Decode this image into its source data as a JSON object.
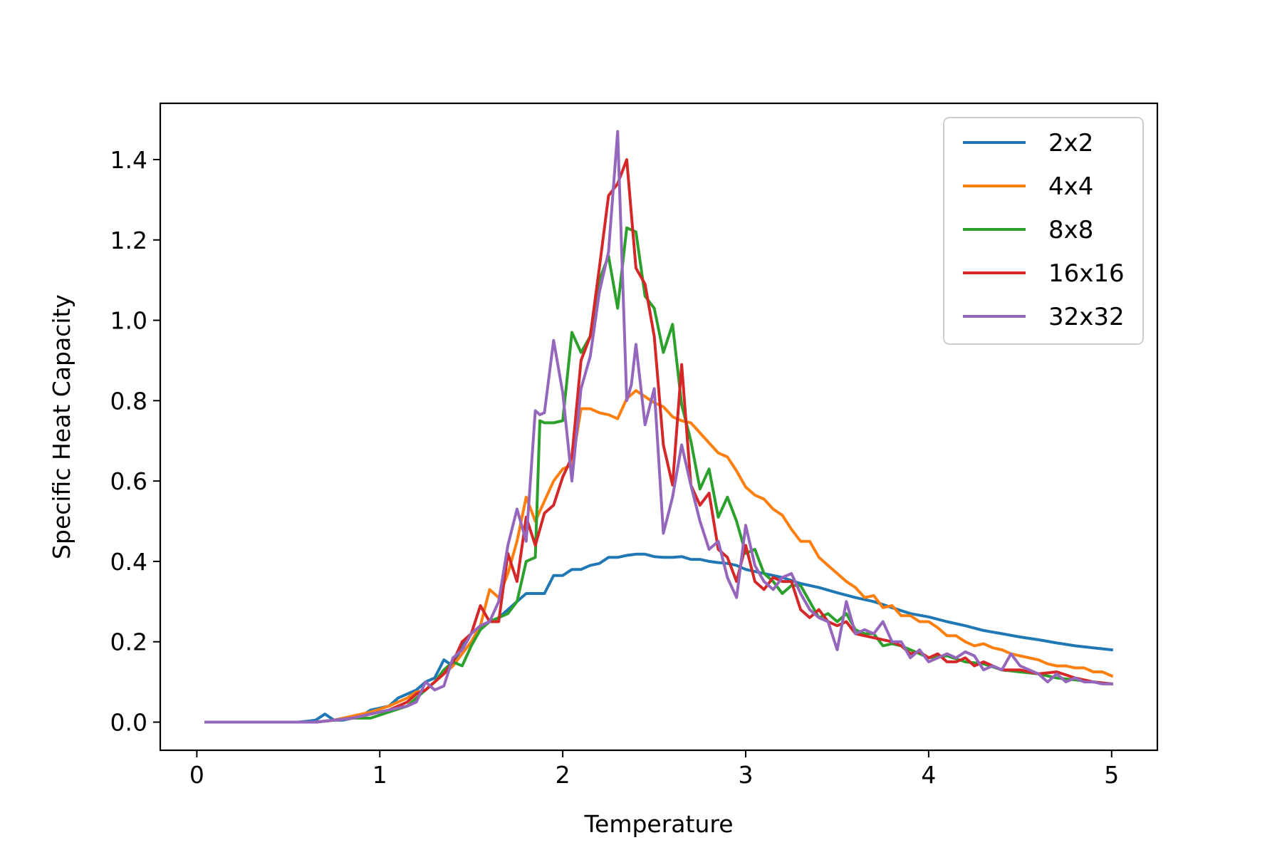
{
  "chart_data": {
    "type": "line",
    "title": "",
    "xlabel": "Temperature",
    "ylabel": "Specific Heat Capacity",
    "xlim": [
      -0.2,
      5.25
    ],
    "ylim": [
      -0.07,
      1.54
    ],
    "xticks": [
      0,
      1,
      2,
      3,
      4,
      5
    ],
    "yticks": [
      0.0,
      0.2,
      0.4,
      0.6,
      0.8,
      1.0,
      1.2,
      1.4
    ],
    "grid": false,
    "legend_position": "top-right",
    "series": [
      {
        "name": "2x2",
        "color": "#1f77b4",
        "x": [
          0.05,
          0.3,
          0.55,
          0.6,
          0.65,
          0.7,
          0.75,
          0.8,
          0.85,
          0.9,
          0.95,
          1.0,
          1.05,
          1.1,
          1.15,
          1.2,
          1.25,
          1.3,
          1.35,
          1.4,
          1.45,
          1.5,
          1.55,
          1.6,
          1.65,
          1.7,
          1.75,
          1.8,
          1.85,
          1.9,
          1.95,
          2.0,
          2.05,
          2.1,
          2.15,
          2.2,
          2.25,
          2.3,
          2.35,
          2.4,
          2.45,
          2.5,
          2.55,
          2.6,
          2.65,
          2.7,
          2.75,
          2.8,
          2.85,
          2.9,
          2.95,
          3.0,
          3.1,
          3.2,
          3.3,
          3.4,
          3.5,
          3.6,
          3.7,
          3.8,
          3.9,
          4.0,
          4.1,
          4.2,
          4.3,
          4.4,
          4.5,
          4.6,
          4.7,
          4.8,
          4.9,
          5.0
        ],
        "y": [
          0.0,
          0.0,
          0.0,
          0.002,
          0.005,
          0.02,
          0.005,
          0.005,
          0.01,
          0.015,
          0.03,
          0.035,
          0.04,
          0.06,
          0.07,
          0.08,
          0.1,
          0.11,
          0.155,
          0.14,
          0.19,
          0.22,
          0.24,
          0.25,
          0.26,
          0.28,
          0.3,
          0.32,
          0.32,
          0.32,
          0.365,
          0.365,
          0.38,
          0.38,
          0.39,
          0.395,
          0.41,
          0.41,
          0.415,
          0.418,
          0.418,
          0.412,
          0.41,
          0.41,
          0.412,
          0.405,
          0.405,
          0.4,
          0.397,
          0.395,
          0.39,
          0.38,
          0.37,
          0.36,
          0.345,
          0.335,
          0.322,
          0.31,
          0.3,
          0.285,
          0.27,
          0.262,
          0.25,
          0.24,
          0.228,
          0.22,
          0.212,
          0.205,
          0.197,
          0.19,
          0.185,
          0.18
        ]
      },
      {
        "name": "4x4",
        "color": "#ff7f0e",
        "x": [
          0.05,
          0.3,
          0.55,
          0.65,
          0.75,
          0.85,
          0.95,
          1.05,
          1.15,
          1.2,
          1.25,
          1.3,
          1.35,
          1.4,
          1.45,
          1.5,
          1.55,
          1.6,
          1.65,
          1.7,
          1.75,
          1.8,
          1.85,
          1.9,
          1.95,
          2.0,
          2.05,
          2.1,
          2.15,
          2.2,
          2.25,
          2.3,
          2.35,
          2.4,
          2.45,
          2.5,
          2.55,
          2.6,
          2.65,
          2.7,
          2.75,
          2.8,
          2.85,
          2.9,
          2.95,
          3.0,
          3.05,
          3.1,
          3.15,
          3.2,
          3.25,
          3.3,
          3.35,
          3.4,
          3.45,
          3.5,
          3.55,
          3.6,
          3.65,
          3.7,
          3.75,
          3.8,
          3.85,
          3.9,
          3.95,
          4.0,
          4.05,
          4.1,
          4.15,
          4.2,
          4.25,
          4.3,
          4.35,
          4.4,
          4.45,
          4.5,
          4.55,
          4.6,
          4.65,
          4.7,
          4.75,
          4.8,
          4.85,
          4.9,
          4.95,
          5.0
        ],
        "y": [
          0.0,
          0.0,
          0.0,
          0.0,
          0.005,
          0.015,
          0.025,
          0.04,
          0.06,
          0.075,
          0.08,
          0.1,
          0.12,
          0.14,
          0.17,
          0.2,
          0.24,
          0.33,
          0.31,
          0.37,
          0.45,
          0.56,
          0.5,
          0.55,
          0.6,
          0.63,
          0.64,
          0.78,
          0.78,
          0.77,
          0.765,
          0.755,
          0.805,
          0.825,
          0.81,
          0.795,
          0.785,
          0.76,
          0.75,
          0.745,
          0.72,
          0.695,
          0.67,
          0.66,
          0.625,
          0.585,
          0.565,
          0.555,
          0.53,
          0.515,
          0.48,
          0.45,
          0.45,
          0.41,
          0.39,
          0.37,
          0.35,
          0.335,
          0.31,
          0.315,
          0.285,
          0.29,
          0.265,
          0.265,
          0.25,
          0.25,
          0.235,
          0.215,
          0.215,
          0.2,
          0.19,
          0.195,
          0.185,
          0.18,
          0.17,
          0.165,
          0.16,
          0.155,
          0.145,
          0.14,
          0.14,
          0.135,
          0.135,
          0.125,
          0.125,
          0.115
        ]
      },
      {
        "name": "8x8",
        "color": "#2ca02c",
        "x": [
          0.05,
          0.3,
          0.55,
          0.65,
          0.75,
          0.85,
          0.95,
          1.05,
          1.15,
          1.2,
          1.25,
          1.3,
          1.35,
          1.4,
          1.45,
          1.5,
          1.55,
          1.6,
          1.65,
          1.7,
          1.75,
          1.8,
          1.85,
          1.875,
          1.9,
          1.95,
          2.0,
          2.05,
          2.1,
          2.15,
          2.2,
          2.25,
          2.3,
          2.35,
          2.4,
          2.45,
          2.5,
          2.55,
          2.6,
          2.65,
          2.7,
          2.75,
          2.8,
          2.85,
          2.9,
          2.95,
          3.0,
          3.05,
          3.1,
          3.15,
          3.2,
          3.25,
          3.3,
          3.35,
          3.4,
          3.45,
          3.5,
          3.55,
          3.6,
          3.65,
          3.7,
          3.75,
          3.8,
          3.85,
          3.9,
          3.95,
          4.0,
          4.1,
          4.2,
          4.3,
          4.4,
          4.5,
          4.6,
          4.7,
          4.8,
          4.9,
          5.0
        ],
        "y": [
          0.0,
          0.0,
          0.0,
          0.0,
          0.005,
          0.01,
          0.01,
          0.025,
          0.04,
          0.06,
          0.08,
          0.1,
          0.13,
          0.15,
          0.14,
          0.19,
          0.23,
          0.25,
          0.26,
          0.27,
          0.3,
          0.4,
          0.41,
          0.75,
          0.745,
          0.745,
          0.75,
          0.97,
          0.92,
          0.96,
          1.1,
          1.16,
          1.03,
          1.23,
          1.22,
          1.06,
          1.03,
          0.92,
          0.99,
          0.79,
          0.7,
          0.58,
          0.63,
          0.51,
          0.56,
          0.5,
          0.42,
          0.43,
          0.37,
          0.35,
          0.32,
          0.34,
          0.34,
          0.3,
          0.26,
          0.27,
          0.25,
          0.27,
          0.23,
          0.22,
          0.22,
          0.19,
          0.195,
          0.19,
          0.18,
          0.17,
          0.16,
          0.165,
          0.15,
          0.145,
          0.13,
          0.125,
          0.12,
          0.11,
          0.105,
          0.1,
          0.095
        ]
      },
      {
        "name": "16x16",
        "color": "#d62728",
        "x": [
          0.05,
          0.3,
          0.55,
          0.65,
          0.75,
          0.85,
          0.95,
          1.05,
          1.15,
          1.2,
          1.25,
          1.3,
          1.35,
          1.4,
          1.45,
          1.5,
          1.55,
          1.6,
          1.65,
          1.7,
          1.75,
          1.8,
          1.85,
          1.9,
          1.95,
          2.0,
          2.05,
          2.1,
          2.15,
          2.2,
          2.25,
          2.3,
          2.35,
          2.4,
          2.45,
          2.5,
          2.55,
          2.6,
          2.65,
          2.7,
          2.75,
          2.8,
          2.85,
          2.9,
          2.95,
          3.0,
          3.05,
          3.1,
          3.15,
          3.2,
          3.25,
          3.3,
          3.35,
          3.4,
          3.45,
          3.5,
          3.55,
          3.6,
          3.65,
          3.7,
          3.75,
          3.8,
          3.85,
          3.9,
          3.95,
          4.0,
          4.05,
          4.1,
          4.15,
          4.2,
          4.25,
          4.3,
          4.4,
          4.5,
          4.6,
          4.7,
          4.8,
          4.9,
          5.0
        ],
        "y": [
          0.0,
          0.0,
          0.0,
          0.0,
          0.005,
          0.01,
          0.02,
          0.03,
          0.05,
          0.07,
          0.08,
          0.1,
          0.12,
          0.15,
          0.2,
          0.22,
          0.29,
          0.25,
          0.25,
          0.42,
          0.35,
          0.51,
          0.44,
          0.52,
          0.54,
          0.61,
          0.66,
          0.9,
          0.96,
          1.13,
          1.31,
          1.34,
          1.4,
          1.13,
          1.09,
          0.96,
          0.69,
          0.59,
          0.89,
          0.59,
          0.54,
          0.57,
          0.43,
          0.41,
          0.35,
          0.44,
          0.35,
          0.33,
          0.36,
          0.35,
          0.35,
          0.28,
          0.26,
          0.28,
          0.25,
          0.24,
          0.25,
          0.22,
          0.215,
          0.21,
          0.205,
          0.2,
          0.19,
          0.17,
          0.175,
          0.16,
          0.17,
          0.15,
          0.15,
          0.16,
          0.14,
          0.15,
          0.13,
          0.13,
          0.12,
          0.125,
          0.11,
          0.1,
          0.095
        ]
      },
      {
        "name": "32x32",
        "color": "#9467bd",
        "x": [
          0.05,
          0.3,
          0.55,
          0.65,
          0.75,
          0.85,
          0.95,
          1.05,
          1.15,
          1.2,
          1.25,
          1.3,
          1.35,
          1.4,
          1.45,
          1.5,
          1.55,
          1.6,
          1.65,
          1.7,
          1.75,
          1.8,
          1.85,
          1.875,
          1.9,
          1.95,
          2.0,
          2.05,
          2.1,
          2.15,
          2.2,
          2.25,
          2.3,
          2.35,
          2.375,
          2.4,
          2.45,
          2.5,
          2.55,
          2.6,
          2.65,
          2.7,
          2.75,
          2.8,
          2.85,
          2.9,
          2.95,
          3.0,
          3.05,
          3.1,
          3.15,
          3.2,
          3.25,
          3.3,
          3.35,
          3.4,
          3.45,
          3.5,
          3.55,
          3.6,
          3.65,
          3.7,
          3.75,
          3.8,
          3.85,
          3.9,
          3.95,
          4.0,
          4.05,
          4.1,
          4.15,
          4.2,
          4.25,
          4.3,
          4.35,
          4.4,
          4.45,
          4.5,
          4.55,
          4.6,
          4.65,
          4.7,
          4.75,
          4.8,
          4.85,
          4.9,
          4.95,
          5.0
        ],
        "y": [
          0.0,
          0.0,
          0.0,
          0.0,
          0.005,
          0.01,
          0.02,
          0.03,
          0.04,
          0.05,
          0.1,
          0.08,
          0.09,
          0.16,
          0.18,
          0.22,
          0.24,
          0.25,
          0.3,
          0.44,
          0.53,
          0.45,
          0.775,
          0.765,
          0.77,
          0.95,
          0.82,
          0.6,
          0.83,
          0.91,
          1.07,
          1.17,
          1.47,
          0.8,
          0.84,
          0.94,
          0.74,
          0.83,
          0.47,
          0.56,
          0.69,
          0.59,
          0.5,
          0.43,
          0.45,
          0.36,
          0.31,
          0.49,
          0.39,
          0.35,
          0.33,
          0.36,
          0.37,
          0.32,
          0.28,
          0.26,
          0.25,
          0.18,
          0.3,
          0.22,
          0.23,
          0.22,
          0.25,
          0.2,
          0.2,
          0.16,
          0.18,
          0.15,
          0.16,
          0.17,
          0.16,
          0.175,
          0.165,
          0.13,
          0.14,
          0.13,
          0.17,
          0.14,
          0.13,
          0.12,
          0.1,
          0.12,
          0.1,
          0.11,
          0.1,
          0.1,
          0.095,
          0.095
        ]
      }
    ]
  }
}
